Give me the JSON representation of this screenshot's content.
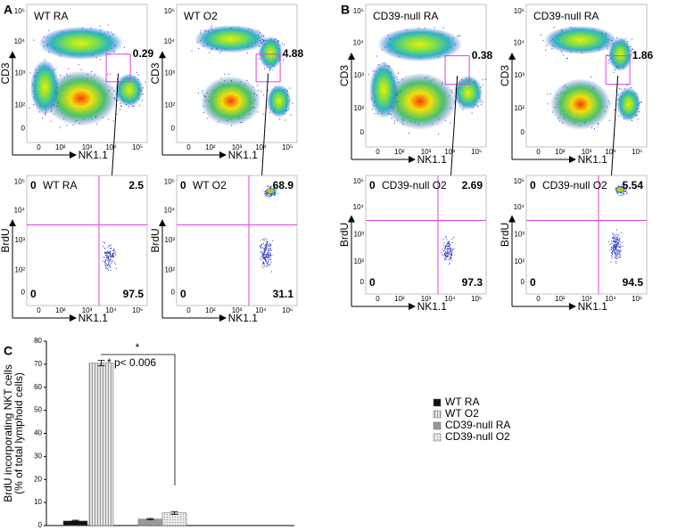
{
  "panel_labels": [
    "A",
    "B",
    "C"
  ],
  "flow_ticks": [
    "0",
    "10²",
    "10³",
    "10⁴",
    "10⁵"
  ],
  "flow_plots": [
    {
      "title": "WT RA",
      "gate_value": 0.29,
      "x_label": "NK1.1",
      "y_label": "CD3"
    },
    {
      "title": "WT O2",
      "gate_value": 4.88,
      "x_label": "NK1.1",
      "y_label": "CD3"
    },
    {
      "title": "WT RA",
      "x_label": "NK1.1",
      "y_label": "BrdU",
      "quadrants": [
        0,
        2.5,
        0,
        97.5
      ]
    },
    {
      "title": "WT O2",
      "x_label": "NK1.1",
      "y_label": "BrdU",
      "quadrants": [
        0,
        68.9,
        0,
        31.1
      ]
    },
    {
      "title": "CD39-null RA",
      "gate_value": 0.38,
      "x_label": "NK1.1",
      "y_label": "CD3"
    },
    {
      "title": "CD39-null RA",
      "gate_value": 1.86,
      "x_label": "NK1.1",
      "y_label": "CD3"
    },
    {
      "title": "CD39-null O2",
      "x_label": "NK1.1",
      "y_label": "BrdU",
      "quadrants": [
        0,
        2.69,
        0,
        97.3
      ]
    },
    {
      "title": "CD39-null O2",
      "x_label": "NK1.1",
      "y_label": "BrdU",
      "quadrants": [
        0,
        5.54,
        0,
        94.5
      ]
    }
  ],
  "chart_data": {
    "type": "bar",
    "y_label": [
      "BrdU incorporating NKT cells",
      "(% of total lymphoid cells)"
    ],
    "ylim": [
      0,
      80
    ],
    "yticks": [
      0,
      10,
      20,
      30,
      40,
      50,
      60,
      70,
      80
    ],
    "annotations": [
      "*",
      "* p< 0.006"
    ],
    "series": [
      {
        "name": "WT RA",
        "color": "#111111",
        "pattern": "solid",
        "values": [
          2
        ],
        "errors": [
          0.3
        ]
      },
      {
        "name": "WT O2",
        "color": "#dddddd",
        "pattern": "stripes",
        "values": [
          70.5
        ],
        "errors": [
          1.2
        ]
      },
      {
        "name": "CD39-null RA",
        "color": "#999999",
        "pattern": "solid",
        "values": [
          2.8
        ],
        "errors": [
          0.3
        ]
      },
      {
        "name": "CD39-null O2",
        "color": "#dddddd",
        "pattern": "dots",
        "values": [
          5.5
        ],
        "errors": [
          0.6
        ]
      }
    ]
  }
}
